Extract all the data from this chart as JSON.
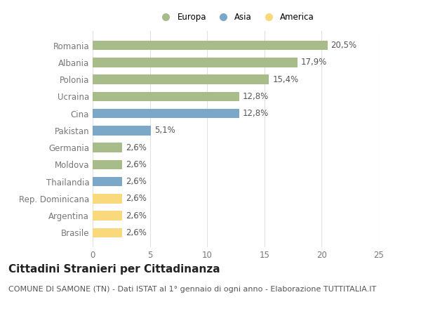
{
  "categories": [
    "Brasile",
    "Argentina",
    "Rep. Dominicana",
    "Thailandia",
    "Moldova",
    "Germania",
    "Pakistan",
    "Cina",
    "Ucraina",
    "Polonia",
    "Albania",
    "Romania"
  ],
  "values": [
    2.6,
    2.6,
    2.6,
    2.6,
    2.6,
    2.6,
    5.1,
    12.8,
    12.8,
    15.4,
    17.9,
    20.5
  ],
  "labels": [
    "2,6%",
    "2,6%",
    "2,6%",
    "2,6%",
    "2,6%",
    "2,6%",
    "5,1%",
    "12,8%",
    "12,8%",
    "15,4%",
    "17,9%",
    "20,5%"
  ],
  "colors": [
    "#f9d97c",
    "#f9d97c",
    "#f9d97c",
    "#7ba7c9",
    "#a8bc8a",
    "#a8bc8a",
    "#7ba7c9",
    "#7ba7c9",
    "#a8bc8a",
    "#a8bc8a",
    "#a8bc8a",
    "#a8bc8a"
  ],
  "legend_labels": [
    "Europa",
    "Asia",
    "America"
  ],
  "legend_colors": [
    "#a8bc8a",
    "#7ba7c9",
    "#f9d97c"
  ],
  "title": "Cittadini Stranieri per Cittadinanza",
  "subtitle": "COMUNE DI SAMONE (TN) - Dati ISTAT al 1° gennaio di ogni anno - Elaborazione TUTTITALIA.IT",
  "xlim": [
    0,
    25
  ],
  "xticks": [
    0,
    5,
    10,
    15,
    20,
    25
  ],
  "bg_color": "#ffffff",
  "plot_bg_color": "#ffffff",
  "grid_color": "#e0e0e0",
  "bar_height": 0.55,
  "label_fontsize": 8.5,
  "title_fontsize": 11,
  "subtitle_fontsize": 8,
  "tick_fontsize": 8.5,
  "label_color": "#555555",
  "tick_color": "#777777"
}
